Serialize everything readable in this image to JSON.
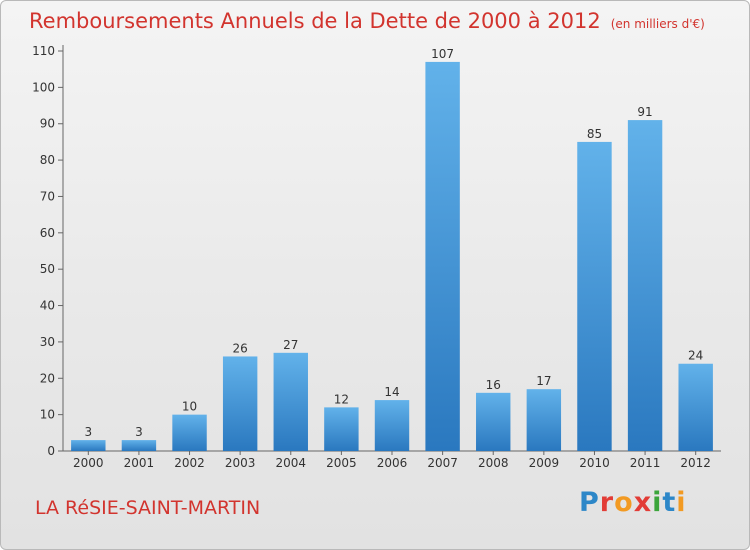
{
  "title": "Remboursements Annuels de la Dette de 2000 à 2012",
  "unit": "(en milliers d'€)",
  "commune": "LA RéSIE-SAINT-MARTIN",
  "logo": {
    "text": "Proxiti"
  },
  "colors": {
    "title": "#d2342e",
    "bar_top": "#62b2ea",
    "bar_bottom": "#2a78bf",
    "axis": "#666666",
    "grid": "#cfcfcf"
  },
  "chart_data": {
    "type": "bar",
    "title": "Remboursements Annuels de la Dette de 2000 à 2012",
    "xlabel": "",
    "ylabel": "",
    "categories": [
      "2000",
      "2001",
      "2002",
      "2003",
      "2004",
      "2005",
      "2006",
      "2007",
      "2008",
      "2009",
      "2010",
      "2011",
      "2012"
    ],
    "values": [
      3,
      3,
      10,
      26,
      27,
      12,
      14,
      107,
      16,
      17,
      85,
      91,
      24
    ],
    "ylim": [
      0,
      110
    ],
    "yticks": [
      0,
      10,
      20,
      30,
      40,
      50,
      60,
      70,
      80,
      90,
      100,
      110
    ],
    "grid": false,
    "data_labels": true
  }
}
